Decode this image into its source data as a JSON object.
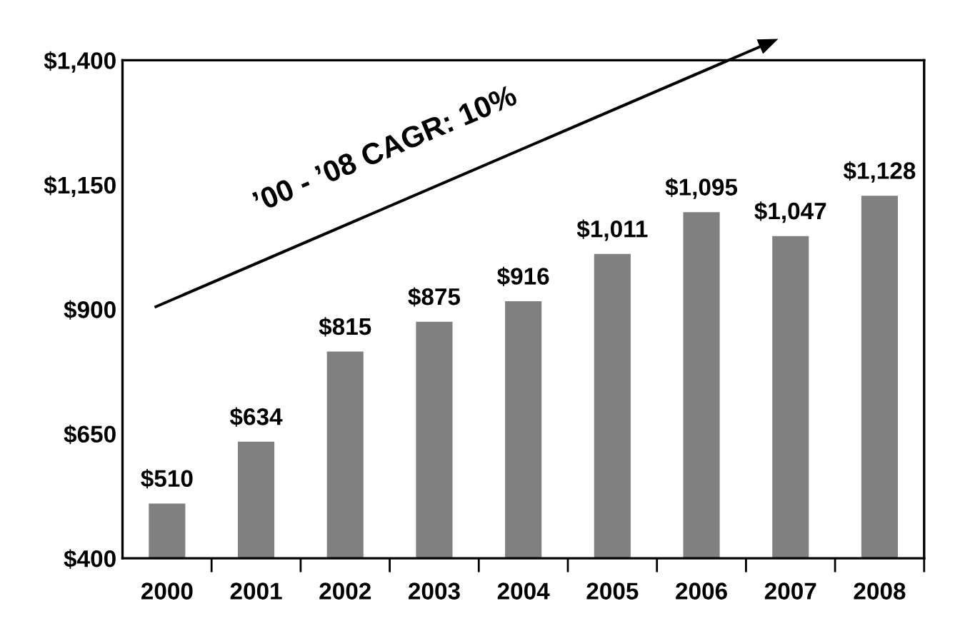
{
  "chart_data": {
    "type": "bar",
    "categories": [
      "2000",
      "2001",
      "2002",
      "2003",
      "2004",
      "2005",
      "2006",
      "2007",
      "2008"
    ],
    "values": [
      510,
      634,
      815,
      875,
      916,
      1011,
      1095,
      1047,
      1128
    ],
    "color": "#808080",
    "value_labels": [
      "$510",
      "$634",
      "$815",
      "$875",
      "$916",
      "$1,011",
      "$1,095",
      "$1,047",
      "$1,128"
    ],
    "ylim": [
      400,
      1400
    ],
    "yticks": [
      {
        "value": 400,
        "label": "$400"
      },
      {
        "value": 650,
        "label": "$650"
      },
      {
        "value": 900,
        "label": "$900"
      },
      {
        "value": 1150,
        "label": "$1,150"
      },
      {
        "value": 1400,
        "label": "$1,400"
      }
    ],
    "annotations": [
      "’00 - ’08 CAGR: 10%"
    ]
  }
}
